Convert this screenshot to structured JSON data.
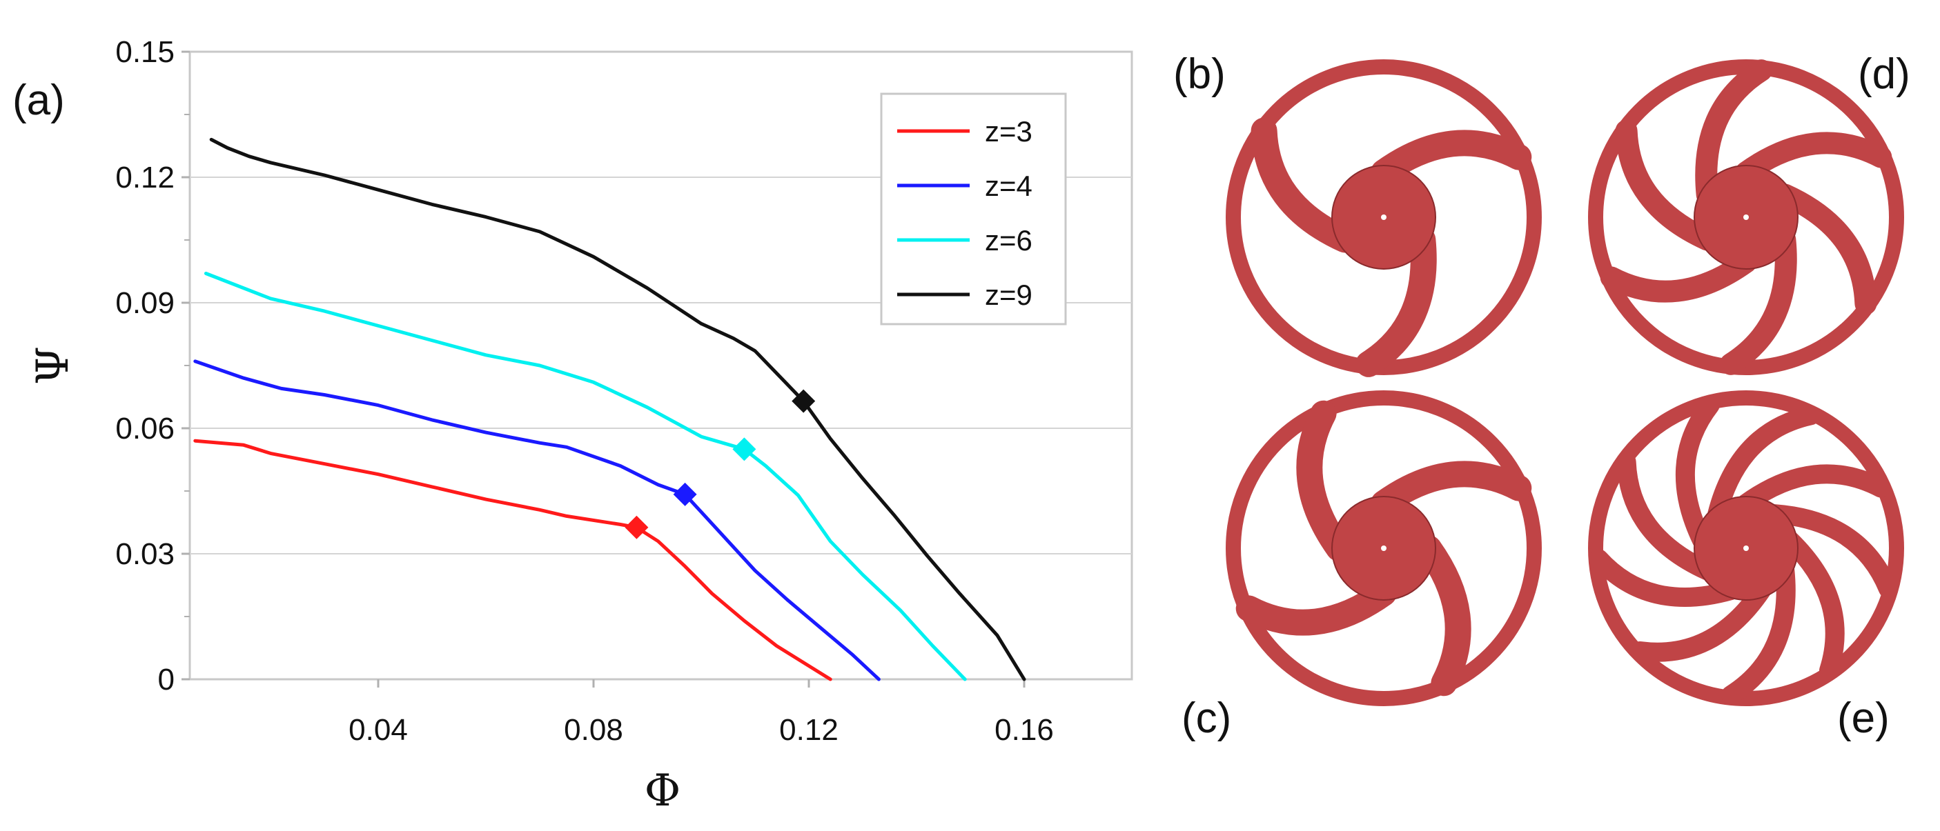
{
  "figure": {
    "panels": {
      "a": "(a)",
      "b": "(b)",
      "c": "(c)",
      "d": "(d)",
      "e": "(e)"
    },
    "impellers": [
      {
        "panel": "b",
        "blades": 3
      },
      {
        "panel": "c",
        "blades": 4
      },
      {
        "panel": "d",
        "blades": 6
      },
      {
        "panel": "e",
        "blades": 9
      }
    ],
    "impeller_color": "#c04446"
  },
  "chart_data": {
    "type": "line",
    "xlabel": "Φ",
    "ylabel": "Ψ",
    "xlim": [
      0.005,
      0.18
    ],
    "ylim": [
      0,
      0.15
    ],
    "xticks": [
      0.04,
      0.08,
      0.12,
      0.16
    ],
    "xtick_labels": [
      "0.04",
      "0.08",
      "0.12",
      "0.16"
    ],
    "yticks": [
      0,
      0.03,
      0.06,
      0.09,
      0.12,
      0.15
    ],
    "ytick_labels": [
      "0",
      "0.03",
      "0.06",
      "0.09",
      "0.12",
      "0.15"
    ],
    "grid": "horizontal",
    "legend_position": "top-right",
    "series": [
      {
        "name": "z=3",
        "color": "#ff1a1a",
        "x": [
          0.006,
          0.015,
          0.02,
          0.03,
          0.04,
          0.05,
          0.06,
          0.07,
          0.075,
          0.085,
          0.088,
          0.092,
          0.097,
          0.102,
          0.108,
          0.114,
          0.119,
          0.124
        ],
        "y": [
          0.057,
          0.056,
          0.054,
          0.0515,
          0.049,
          0.046,
          0.043,
          0.0405,
          0.039,
          0.037,
          0.0363,
          0.033,
          0.027,
          0.0205,
          0.014,
          0.008,
          0.004,
          0.0
        ],
        "marker": {
          "x": 0.088,
          "y": 0.0363
        }
      },
      {
        "name": "z=4",
        "color": "#1a1aff",
        "x": [
          0.006,
          0.015,
          0.022,
          0.03,
          0.04,
          0.05,
          0.06,
          0.07,
          0.075,
          0.085,
          0.092,
          0.097,
          0.1,
          0.105,
          0.11,
          0.116,
          0.122,
          0.128,
          0.133
        ],
        "y": [
          0.076,
          0.072,
          0.0695,
          0.068,
          0.0655,
          0.062,
          0.059,
          0.0565,
          0.0555,
          0.051,
          0.0465,
          0.0442,
          0.04,
          0.033,
          0.026,
          0.019,
          0.0125,
          0.006,
          0.0
        ],
        "marker": {
          "x": 0.097,
          "y": 0.0442
        }
      },
      {
        "name": "z=6",
        "color": "#00f0f0",
        "x": [
          0.008,
          0.02,
          0.03,
          0.04,
          0.05,
          0.06,
          0.07,
          0.08,
          0.09,
          0.1,
          0.108,
          0.112,
          0.118,
          0.124,
          0.13,
          0.137,
          0.143,
          0.149
        ],
        "y": [
          0.097,
          0.091,
          0.088,
          0.0845,
          0.081,
          0.0775,
          0.075,
          0.071,
          0.065,
          0.058,
          0.055,
          0.051,
          0.044,
          0.033,
          0.025,
          0.0165,
          0.008,
          0.0
        ],
        "marker": {
          "x": 0.108,
          "y": 0.055
        }
      },
      {
        "name": "z=9",
        "color": "#111111",
        "x": [
          0.009,
          0.012,
          0.016,
          0.02,
          0.03,
          0.04,
          0.05,
          0.06,
          0.07,
          0.08,
          0.09,
          0.1,
          0.106,
          0.11,
          0.119,
          0.124,
          0.13,
          0.136,
          0.142,
          0.148,
          0.155,
          0.16
        ],
        "y": [
          0.129,
          0.127,
          0.125,
          0.1235,
          0.1205,
          0.117,
          0.1135,
          0.1105,
          0.107,
          0.101,
          0.0935,
          0.085,
          0.0815,
          0.0785,
          0.0665,
          0.0575,
          0.048,
          0.039,
          0.0295,
          0.0205,
          0.0105,
          0.0
        ],
        "marker": {
          "x": 0.119,
          "y": 0.0665
        }
      }
    ]
  }
}
